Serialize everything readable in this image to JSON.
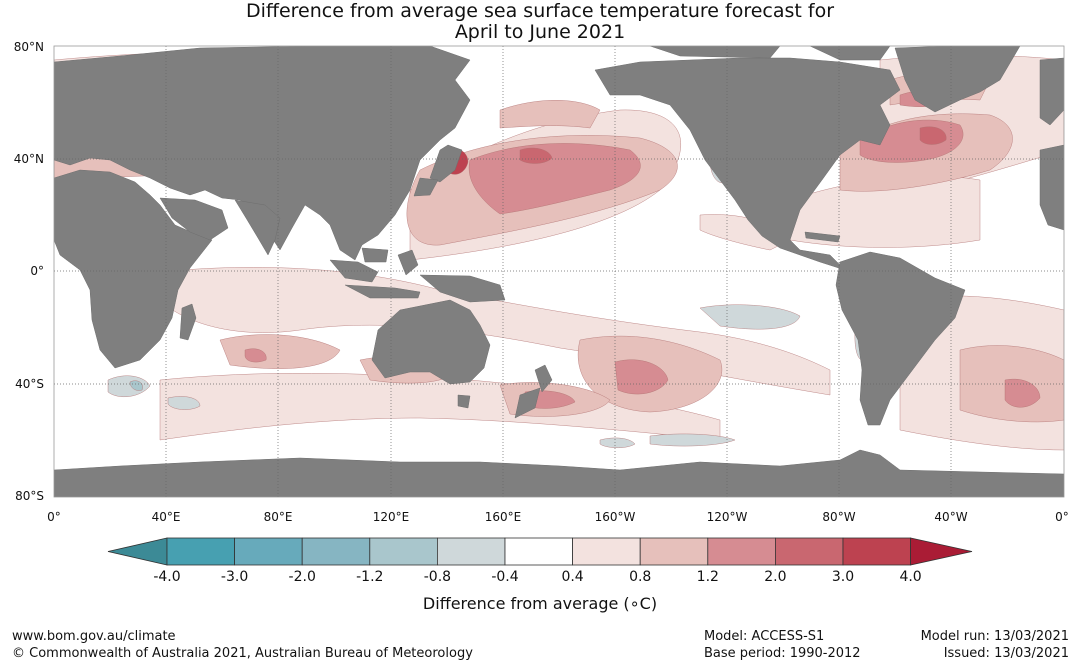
{
  "title_line1": "Difference from average sea surface temperature forecast for",
  "title_line2": "April to June 2021",
  "lat_labels": [
    "80°N",
    "40°N",
    "0°",
    "40°S",
    "80°S"
  ],
  "lon_labels": [
    "0°",
    "40°E",
    "80°E",
    "120°E",
    "160°E",
    "160°W",
    "120°W",
    "80°W",
    "40°W",
    "0°"
  ],
  "colorbar": {
    "label": "Difference from average (∘C)",
    "ticks": [
      "-4.0",
      "-3.0",
      "-2.0",
      "-1.2",
      "-0.8",
      "-0.4",
      "0.4",
      "0.8",
      "1.2",
      "2.0",
      "3.0",
      "4.0"
    ],
    "colors": [
      "#3c8a96",
      "#47a0b1",
      "#67aabb",
      "#86b5c2",
      "#a9c6cc",
      "#cfd8da",
      "#ffffff",
      "#f3e2df",
      "#e6c0bb",
      "#d68c92",
      "#c96770",
      "#bd4250",
      "#aa1c35"
    ]
  },
  "colors": {
    "land": "#7f7f7f",
    "ocean": "#ffffff"
  },
  "footer": {
    "url": "www.bom.gov.au/climate",
    "copyright": "© Commonwealth of Australia 2021, Australian Bureau of Meteorology",
    "model": "Model: ACCESS-S1",
    "base_period": "Base period: 1990-2012",
    "model_run": "Model run: 13/03/2021",
    "issued": "Issued: 13/03/2021"
  }
}
